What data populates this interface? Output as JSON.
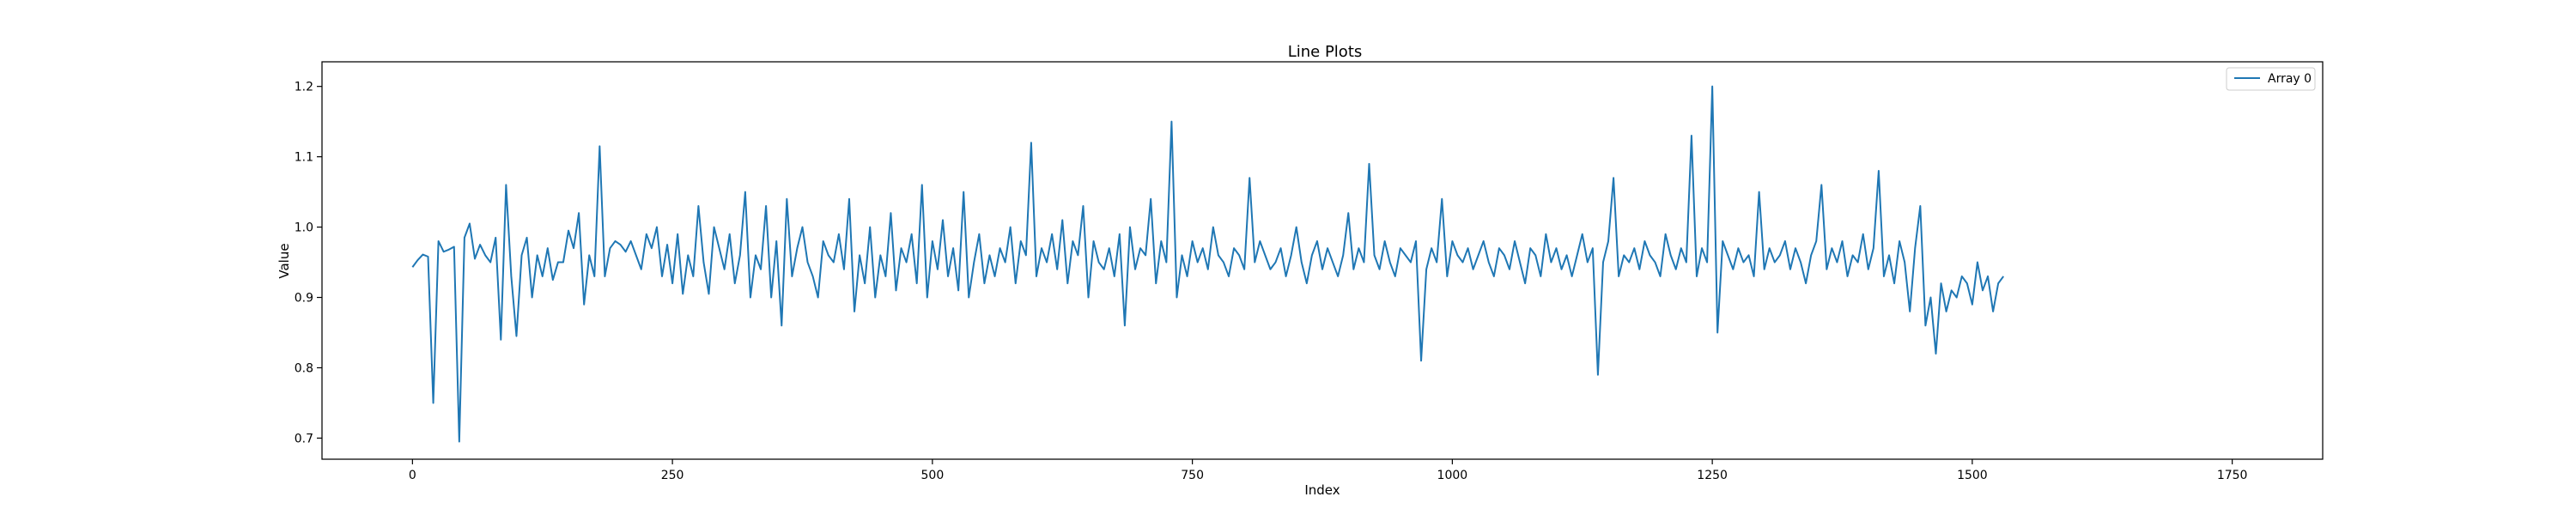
{
  "chart_data": {
    "type": "line",
    "title": "Line Plots",
    "xlabel": "Index",
    "ylabel": "Value",
    "xlim": [
      -87,
      1837
    ],
    "ylim": [
      0.67,
      1.235
    ],
    "x_ticks": [
      0,
      250,
      500,
      750,
      1000,
      1250,
      1500,
      1750
    ],
    "y_ticks": [
      0.7,
      0.8,
      0.9,
      1.0,
      1.1,
      1.2
    ],
    "legend_position": "top-right",
    "grid": false,
    "series": [
      {
        "name": "Array 0",
        "color": "#1f77b4",
        "x_start": 0,
        "x_step": 5,
        "values": [
          0.943,
          0.953,
          0.961,
          0.958,
          0.75,
          0.98,
          0.965,
          0.968,
          0.972,
          0.695,
          0.985,
          1.005,
          0.955,
          0.975,
          0.96,
          0.95,
          0.985,
          0.84,
          1.06,
          0.93,
          0.845,
          0.96,
          0.985,
          0.9,
          0.96,
          0.93,
          0.97,
          0.925,
          0.95,
          0.95,
          0.995,
          0.97,
          1.02,
          0.89,
          0.96,
          0.93,
          1.115,
          0.93,
          0.97,
          0.98,
          0.975,
          0.965,
          0.98,
          0.96,
          0.94,
          0.99,
          0.97,
          1.0,
          0.93,
          0.975,
          0.92,
          0.99,
          0.905,
          0.96,
          0.93,
          1.03,
          0.95,
          0.905,
          1.0,
          0.97,
          0.94,
          0.99,
          0.92,
          0.96,
          1.05,
          0.9,
          0.96,
          0.94,
          1.03,
          0.9,
          0.98,
          0.86,
          1.04,
          0.93,
          0.97,
          1.0,
          0.95,
          0.93,
          0.9,
          0.98,
          0.96,
          0.95,
          0.99,
          0.94,
          1.04,
          0.88,
          0.96,
          0.92,
          1.0,
          0.9,
          0.96,
          0.93,
          1.02,
          0.91,
          0.97,
          0.95,
          0.99,
          0.92,
          1.06,
          0.9,
          0.98,
          0.94,
          1.01,
          0.93,
          0.97,
          0.91,
          1.05,
          0.9,
          0.95,
          0.99,
          0.92,
          0.96,
          0.93,
          0.97,
          0.95,
          1.0,
          0.92,
          0.98,
          0.96,
          1.12,
          0.93,
          0.97,
          0.95,
          0.99,
          0.94,
          1.01,
          0.92,
          0.98,
          0.96,
          1.03,
          0.9,
          0.98,
          0.95,
          0.94,
          0.97,
          0.93,
          0.99,
          0.86,
          1.0,
          0.94,
          0.97,
          0.96,
          1.04,
          0.92,
          0.98,
          0.95,
          1.15,
          0.9,
          0.96,
          0.93,
          0.98,
          0.95,
          0.97,
          0.94,
          1.0,
          0.96,
          0.95,
          0.93,
          0.97,
          0.96,
          0.94,
          1.07,
          0.95,
          0.98,
          0.96,
          0.94,
          0.95,
          0.97,
          0.93,
          0.96,
          1.0,
          0.95,
          0.92,
          0.96,
          0.98,
          0.94,
          0.97,
          0.95,
          0.93,
          0.96,
          1.02,
          0.94,
          0.97,
          0.95,
          1.09,
          0.96,
          0.94,
          0.98,
          0.95,
          0.93,
          0.97,
          0.96,
          0.95,
          0.98,
          0.81,
          0.94,
          0.97,
          0.95,
          1.04,
          0.93,
          0.98,
          0.96,
          0.95,
          0.97,
          0.94,
          0.96,
          0.98,
          0.95,
          0.93,
          0.97,
          0.96,
          0.94,
          0.98,
          0.95,
          0.92,
          0.97,
          0.96,
          0.93,
          0.99,
          0.95,
          0.97,
          0.94,
          0.96,
          0.93,
          0.96,
          0.99,
          0.95,
          0.97,
          0.79,
          0.95,
          0.98,
          1.07,
          0.93,
          0.96,
          0.95,
          0.97,
          0.94,
          0.98,
          0.96,
          0.95,
          0.93,
          0.99,
          0.96,
          0.94,
          0.97,
          0.95,
          1.13,
          0.93,
          0.97,
          0.95,
          1.2,
          0.85,
          0.98,
          0.96,
          0.94,
          0.97,
          0.95,
          0.96,
          0.93,
          1.05,
          0.94,
          0.97,
          0.95,
          0.96,
          0.98,
          0.94,
          0.97,
          0.95,
          0.92,
          0.96,
          0.98,
          1.06,
          0.94,
          0.97,
          0.95,
          0.98,
          0.93,
          0.96,
          0.95,
          0.99,
          0.94,
          0.97,
          1.08,
          0.93,
          0.96,
          0.92,
          0.98,
          0.95,
          0.88,
          0.97,
          1.03,
          0.86,
          0.9,
          0.82,
          0.92,
          0.88,
          0.91,
          0.9,
          0.93,
          0.92,
          0.89,
          0.95,
          0.91,
          0.93,
          0.88,
          0.92,
          0.93
        ]
      }
    ]
  }
}
